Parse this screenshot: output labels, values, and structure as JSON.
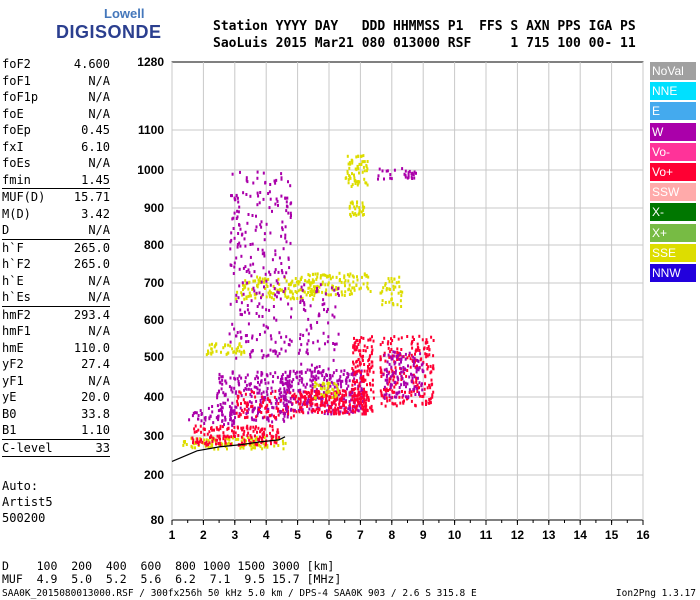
{
  "logo": {
    "line1": "Lowell",
    "line2": "DIGISONDE"
  },
  "header": {
    "line1": "Station YYYY DAY   DDD HHMMSS P1  FFS S AXN PPS IGA PS",
    "line2": "SaoLuis 2015 Mar21 080 013000 RSF     1 715 100 00- 11"
  },
  "params": [
    {
      "name": "foF2",
      "value": "4.600"
    },
    {
      "name": "foF1",
      "value": "N/A"
    },
    {
      "name": "foF1p",
      "value": "N/A"
    },
    {
      "name": "foE",
      "value": "N/A"
    },
    {
      "name": "foEp",
      "value": "0.45"
    },
    {
      "name": "fxI",
      "value": "6.10"
    },
    {
      "name": "foEs",
      "value": "N/A"
    },
    {
      "name": "fmin",
      "value": "1.45",
      "sep": true
    },
    {
      "name": "MUF(D)",
      "value": "15.71"
    },
    {
      "name": "M(D)",
      "value": "3.42"
    },
    {
      "name": "D",
      "value": "N/A",
      "sep": true
    },
    {
      "name": "h`F",
      "value": "265.0"
    },
    {
      "name": "h`F2",
      "value": "265.0"
    },
    {
      "name": "h`E",
      "value": "N/A"
    },
    {
      "name": "h`Es",
      "value": "N/A",
      "sep": true
    },
    {
      "name": "hmF2",
      "value": "293.4"
    },
    {
      "name": "hmF1",
      "value": "N/A"
    },
    {
      "name": "hmE",
      "value": "110.0"
    },
    {
      "name": "yF2",
      "value": "27.4"
    },
    {
      "name": "yF1",
      "value": "N/A"
    },
    {
      "name": "yE",
      "value": "20.0"
    },
    {
      "name": "B0",
      "value": "33.8"
    },
    {
      "name": "B1",
      "value": "1.10",
      "sep": true
    },
    {
      "name": "C-level",
      "value": "33",
      "sep": true
    }
  ],
  "auto": {
    "line1": "Auto:",
    "line2": "Artist5",
    "line3": "500200"
  },
  "legend": [
    {
      "label": "NoVal",
      "color": "#a0a0a0"
    },
    {
      "label": "NNE",
      "color": "#00e0ff"
    },
    {
      "label": "E",
      "color": "#44aaee"
    },
    {
      "label": "W",
      "color": "#aa00aa"
    },
    {
      "label": "Vo-",
      "color": "#ff3399"
    },
    {
      "label": "Vo+",
      "color": "#ff0033"
    },
    {
      "label": "SSW",
      "color": "#ffaaaa"
    },
    {
      "label": "X-",
      "color": "#007700"
    },
    {
      "label": "X+",
      "color": "#77bb44"
    },
    {
      "label": "SSE",
      "color": "#dddd00"
    },
    {
      "label": "NNW",
      "color": "#2200dd"
    }
  ],
  "bottom": {
    "d_line": "D    100  200  400  600  800 1000 1500 3000 [km]",
    "muf_line": "MUF  4.9  5.0  5.2  5.6  6.2  7.1  9.5 15.7 [MHz]"
  },
  "footer": "SAA0K_2015080013000.RSF / 300fx256h 50 kHz 5.0 km / DPS-4 SAA0K 903 / 2.6 S 315.8 E",
  "version": "Ion2Png 1.3.17",
  "chart_data": {
    "type": "scatter",
    "title": "",
    "xlabel": "",
    "ylabel": "",
    "xlim": [
      1,
      16
    ],
    "x_ticks": [
      1,
      2,
      3,
      4,
      5,
      6,
      7,
      8,
      9,
      10,
      11,
      12,
      13,
      14,
      15,
      16
    ],
    "y_ticks": [
      80,
      200,
      300,
      400,
      500,
      600,
      700,
      800,
      900,
      1000,
      1100,
      1280
    ],
    "y_scale": "ionogram-virtual-height",
    "grid": true,
    "regions": [
      {
        "name": "SSE",
        "x": [
          1.3,
          4.6
        ],
        "y": [
          270,
          300
        ],
        "n": 120
      },
      {
        "name": "Vo+",
        "x": [
          1.6,
          4.4
        ],
        "y": [
          280,
          330
        ],
        "n": 160
      },
      {
        "name": "W",
        "x": [
          1.5,
          3.0
        ],
        "y": [
          330,
          380
        ],
        "n": 50
      },
      {
        "name": "W",
        "x": [
          2.4,
          4.8
        ],
        "y": [
          340,
          470
        ],
        "n": 220
      },
      {
        "name": "Vo+",
        "x": [
          3.0,
          5.0
        ],
        "y": [
          350,
          420
        ],
        "n": 90
      },
      {
        "name": "SSE",
        "x": [
          3.0,
          5.5
        ],
        "y": [
          660,
          720
        ],
        "n": 130
      },
      {
        "name": "W",
        "x": [
          2.8,
          4.8
        ],
        "y": [
          500,
          1000
        ],
        "n": 260
      },
      {
        "name": "W",
        "x": [
          4.4,
          7.1
        ],
        "y": [
          360,
          470
        ],
        "n": 300
      },
      {
        "name": "Vo+",
        "x": [
          5.0,
          7.2
        ],
        "y": [
          360,
          420
        ],
        "n": 200
      },
      {
        "name": "SSE",
        "x": [
          2.0,
          3.3
        ],
        "y": [
          510,
          540
        ],
        "n": 40
      },
      {
        "name": "SSE",
        "x": [
          5.2,
          7.3
        ],
        "y": [
          670,
          730
        ],
        "n": 110
      },
      {
        "name": "SSE",
        "x": [
          6.5,
          7.2
        ],
        "y": [
          960,
          1040
        ],
        "n": 60
      },
      {
        "name": "SSE",
        "x": [
          6.6,
          7.1
        ],
        "y": [
          880,
          920
        ],
        "n": 30
      },
      {
        "name": "Vo+",
        "x": [
          6.7,
          7.4
        ],
        "y": [
          360,
          560
        ],
        "n": 150
      },
      {
        "name": "Vo+",
        "x": [
          7.6,
          9.3
        ],
        "y": [
          380,
          560
        ],
        "n": 220
      },
      {
        "name": "W",
        "x": [
          7.7,
          9.0
        ],
        "y": [
          400,
          520
        ],
        "n": 120
      },
      {
        "name": "SSE",
        "x": [
          7.6,
          8.3
        ],
        "y": [
          640,
          720
        ],
        "n": 40
      },
      {
        "name": "W",
        "x": [
          7.5,
          8.8
        ],
        "y": [
          980,
          1010
        ],
        "n": 30
      },
      {
        "name": "W",
        "x": [
          5.0,
          6.3
        ],
        "y": [
          450,
          700
        ],
        "n": 80
      },
      {
        "name": "SSE",
        "x": [
          5.5,
          6.3
        ],
        "y": [
          400,
          440
        ],
        "n": 40
      }
    ],
    "traced_curve": {
      "label": "h'F trace",
      "x": [
        1.0,
        1.8,
        2.5,
        3.2,
        3.8,
        4.4,
        4.6
      ],
      "y": [
        235,
        262,
        272,
        278,
        285,
        290,
        298
      ]
    }
  }
}
